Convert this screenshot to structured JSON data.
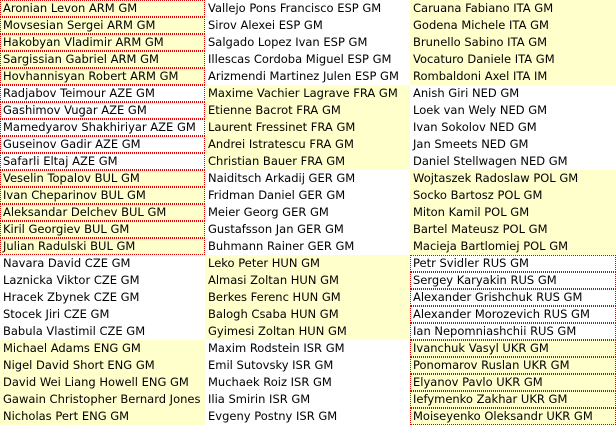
{
  "colors": {
    "highlight": "#ffffcc",
    "border": "#e00000"
  },
  "columns": [
    {
      "groups": [
        {
          "highlight": true,
          "bordered": true,
          "names": [
            "Aronian Levon ARM GM",
            "Movsesian Sergei ARM GM",
            "Hakobyan Vladimir ARM GM",
            "Sargissian Gabriel ARM GM",
            "Hovhannisyan Robert ARM GM"
          ]
        },
        {
          "highlight": false,
          "bordered": true,
          "names": [
            "Radjabov Teimour AZE GM",
            "Gashimov Vugar AZE GM",
            "Mamedyarov Shakhiriyar AZE GM",
            "Guseinov Gadir AZE GM",
            "Safarli Eltaj AZE GM"
          ]
        },
        {
          "highlight": true,
          "bordered": true,
          "names": [
            "Veselin Topalov BUL GM",
            "Ivan Cheparinov BUL GM",
            "Aleksandar Delchev BUL GM",
            "Kiril Georgiev BUL GM",
            "Julian Radulski BUL GM"
          ]
        },
        {
          "highlight": false,
          "bordered": false,
          "names": [
            "Navara David CZE GM",
            "Laznicka Viktor CZE GM",
            "Hracek Zbynek CZE GM",
            "Stocek Jiri CZE GM",
            "Babula Vlastimil CZE GM"
          ]
        },
        {
          "highlight": true,
          "bordered": false,
          "names": [
            "Michael Adams ENG GM",
            "Nigel David Short ENG GM",
            "David Wei Liang Howell ENG GM",
            "Gawain Christopher Bernard Jones",
            "Nicholas Pert ENG GM"
          ]
        }
      ]
    },
    {
      "groups": [
        {
          "highlight": false,
          "bordered": false,
          "names": [
            "Vallejo Pons Francisco ESP GM",
            "Sirov Alexei ESP GM",
            "Salgado Lopez Ivan ESP GM",
            "Illescas Cordoba Miguel ESP GM",
            "Arizmendi Martinez Julen ESP GM"
          ]
        },
        {
          "highlight": true,
          "bordered": false,
          "names": [
            "Maxime Vachier Lagrave FRA GM",
            "Etienne Bacrot FRA GM",
            "Laurent Fressinet FRA GM",
            "Andrei Istratescu FRA GM",
            "Christian Bauer FRA GM"
          ]
        },
        {
          "highlight": false,
          "bordered": false,
          "names": [
            "Naiditsch Arkadij GER GM",
            "Fridman Daniel GER GM",
            "Meier Georg GER GM",
            "Gustafsson Jan GER GM",
            "Buhmann Rainer GER GM"
          ]
        },
        {
          "highlight": true,
          "bordered": false,
          "names": [
            "Leko Peter HUN GM",
            "Almasi Zoltan HUN GM",
            "Berkes Ferenc HUN GM",
            "Balogh Csaba HUN GM",
            "Gyimesi Zoltan HUN GM"
          ]
        },
        {
          "highlight": false,
          "bordered": false,
          "names": [
            "Maxim Rodstein ISR GM",
            "Emil Sutovsky ISR GM",
            "Muchaek Roiz ISR GM",
            "Ilia Smirin ISR GM",
            "Evgeny Postny ISR GM"
          ]
        }
      ]
    },
    {
      "groups": [
        {
          "highlight": true,
          "bordered": false,
          "names": [
            "Caruana Fabiano ITA GM",
            "Godena Michele ITA GM",
            "Brunello Sabino ITA GM",
            "Vocaturo Daniele ITA GM",
            "Rombaldoni Axel ITA IM"
          ]
        },
        {
          "highlight": false,
          "bordered": false,
          "names": [
            "Anish Giri NED GM",
            "Loek van Wely NED GM",
            "Ivan Sokolov NED GM",
            "Jan Smeets NED GM",
            "Daniel Stellwagen NED GM"
          ]
        },
        {
          "highlight": true,
          "bordered": false,
          "names": [
            "Wojtaszek Radoslaw POL GM",
            "Socko Bartosz POL GM",
            "Miton Kamil POL GM",
            "Bartel Mateusz POL GM",
            "Macieja Bartlomiej POL GM"
          ]
        },
        {
          "highlight": false,
          "bordered": true,
          "names": [
            "Petr Svidler RUS GM",
            "Sergey Karyakin RUS GM",
            "Alexander Grishchuk RUS GM",
            "Alexander Morozevich RUS GM",
            "Ian Nepomniashchii RUS GM"
          ]
        },
        {
          "highlight": true,
          "bordered": true,
          "names": [
            "Ivanchuk Vasyl UKR GM",
            "Ponomarov Ruslan UKR GM",
            "Elyanov Pavlo UKR GM",
            "Iefymenko Zakhar UKR GM",
            "Moiseyenko Oleksandr UKR GM"
          ]
        }
      ]
    }
  ]
}
